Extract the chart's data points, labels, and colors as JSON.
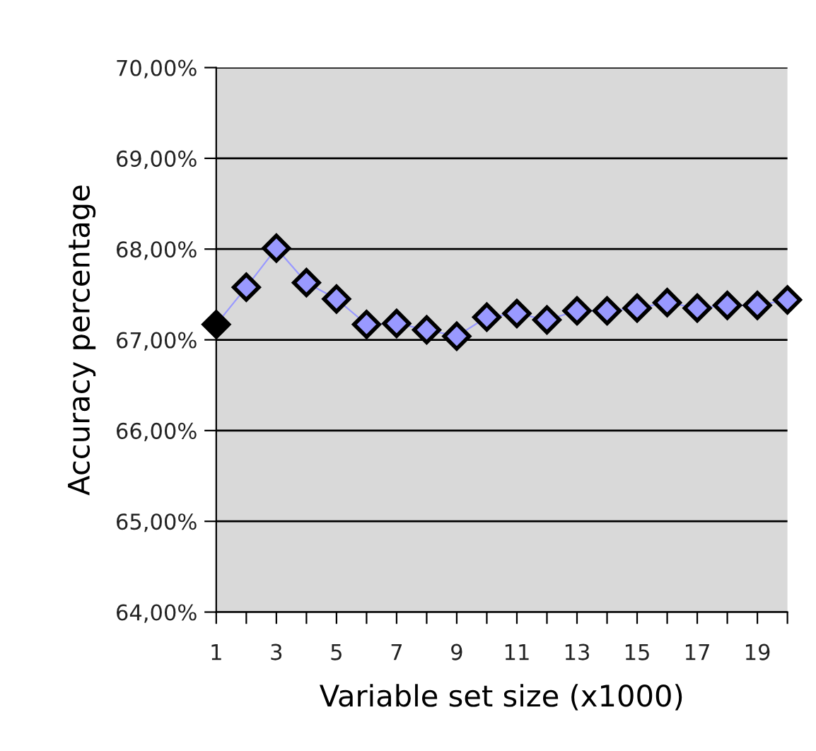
{
  "chart_data": {
    "type": "line",
    "xlabel": "Variable set size (x1000)",
    "ylabel": "Accuracy percentage",
    "x": [
      1,
      2,
      3,
      4,
      5,
      6,
      7,
      8,
      9,
      10,
      11,
      12,
      13,
      14,
      15,
      16,
      17,
      18,
      19,
      20
    ],
    "series": [
      {
        "color": "#9999ff",
        "colors": [
          "#000000",
          "#9999ff",
          "#9999ff",
          "#9999ff",
          "#9999ff",
          "#9999ff",
          "#9999ff",
          "#9999ff",
          "#9999ff",
          "#9999ff",
          "#9999ff",
          "#9999ff",
          "#9999ff",
          "#9999ff",
          "#9999ff",
          "#9999ff",
          "#9999ff",
          "#9999ff",
          "#9999ff",
          "#9999ff"
        ],
        "values": [
          67.17,
          67.58,
          68.01,
          67.63,
          67.45,
          67.17,
          67.18,
          67.11,
          67.04,
          67.25,
          67.29,
          67.22,
          67.32,
          67.32,
          67.35,
          67.41,
          67.35,
          67.38,
          67.38,
          67.44
        ]
      }
    ],
    "xlim": [
      1,
      20
    ],
    "xticks": [
      1,
      {
        "value": 2,
        "label": null
      },
      3,
      {
        "value": 4,
        "label": null
      },
      5,
      {
        "value": 6,
        "label": null
      },
      7,
      {
        "value": 8,
        "label": null
      },
      9,
      {
        "value": 10,
        "label": null
      },
      11,
      {
        "value": 12,
        "label": null
      },
      13,
      {
        "value": 14,
        "label": null
      },
      15,
      {
        "value": 16,
        "label": null
      },
      17,
      {
        "value": 18,
        "label": null
      },
      19,
      {
        "value": 20,
        "label": null
      }
    ],
    "ylim": [
      64,
      70
    ],
    "yticks": [
      {
        "value": 64,
        "label": "64,00%"
      },
      {
        "value": 65,
        "label": "65,00%"
      },
      {
        "value": 66,
        "label": "66,00%"
      },
      {
        "value": 67,
        "label": "67,00%"
      },
      {
        "value": 68,
        "label": "68,00%"
      },
      {
        "value": 69,
        "label": "69,00%"
      },
      {
        "value": 70,
        "label": "70,00%"
      }
    ],
    "grid": "y",
    "marker": "diamond",
    "line_style": "solid"
  }
}
